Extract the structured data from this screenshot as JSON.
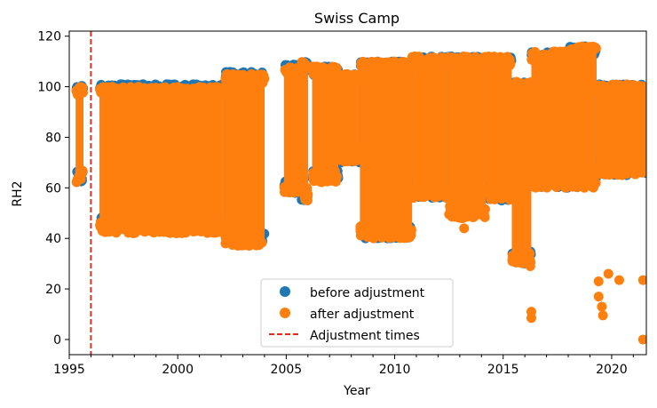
{
  "chart_data": {
    "type": "scatter",
    "title": "Swiss Camp",
    "xlabel": "Year",
    "ylabel": "RH2",
    "xlim": [
      1995,
      2021.6
    ],
    "ylim": [
      -6,
      122
    ],
    "xticks": [
      1995,
      2000,
      2005,
      2010,
      2015,
      2020
    ],
    "yticks": [
      0,
      20,
      40,
      60,
      80,
      100,
      120
    ],
    "legend_position": "lower center",
    "series": [
      {
        "name": "before adjustment",
        "color": "#1f77b4",
        "marker": "circle",
        "bands": [
          [
            1995.3,
            1995.65,
            62,
            101
          ],
          [
            1996.4,
            2002.2,
            45,
            101
          ],
          [
            2002.2,
            2004.0,
            38,
            106
          ],
          [
            2004.9,
            2005.7,
            58,
            109
          ],
          [
            2005.7,
            2006.0,
            55,
            110
          ],
          [
            2006.2,
            2007.4,
            63,
            108
          ],
          [
            2007.4,
            2008.4,
            70,
            105
          ],
          [
            2008.4,
            2010.8,
            40,
            110
          ],
          [
            2010.8,
            2012.5,
            56,
            112
          ],
          [
            2012.5,
            2014.2,
            56,
            112
          ],
          [
            2014.2,
            2015.4,
            55,
            112
          ],
          [
            2015.4,
            2016.3,
            30,
            102
          ],
          [
            2016.3,
            2018.0,
            60,
            114
          ],
          [
            2018.0,
            2019.3,
            62,
            116
          ],
          [
            2019.3,
            2021.6,
            65,
            101
          ]
        ],
        "points": []
      },
      {
        "name": "after adjustment",
        "color": "#ff7f0e",
        "marker": "circle",
        "bands": [
          [
            1995.3,
            1995.65,
            62,
            100
          ],
          [
            1996.4,
            2002.2,
            42,
            100
          ],
          [
            2002.2,
            2004.0,
            37,
            105
          ],
          [
            2004.9,
            2005.7,
            58,
            108
          ],
          [
            2005.7,
            2006.0,
            55,
            110
          ],
          [
            2006.2,
            2007.4,
            62,
            108
          ],
          [
            2007.4,
            2008.4,
            70,
            105
          ],
          [
            2008.4,
            2010.8,
            40,
            110
          ],
          [
            2010.8,
            2012.5,
            56,
            112
          ],
          [
            2012.5,
            2014.2,
            48,
            112
          ],
          [
            2014.2,
            2015.4,
            55,
            112
          ],
          [
            2015.4,
            2016.3,
            30,
            102
          ],
          [
            2016.3,
            2018.0,
            60,
            114
          ],
          [
            2018.0,
            2019.3,
            60,
            116
          ],
          [
            2019.3,
            2021.6,
            65,
            101
          ]
        ],
        "points": [
          [
            2016.1,
            32.5
          ],
          [
            2016.25,
            29
          ],
          [
            2016.3,
            11
          ],
          [
            2016.3,
            8.5
          ],
          [
            2019.4,
            23
          ],
          [
            2019.4,
            17
          ],
          [
            2019.55,
            13
          ],
          [
            2019.6,
            9.5
          ],
          [
            2019.85,
            26
          ],
          [
            2020.35,
            23.5
          ],
          [
            2021.45,
            23.5
          ],
          [
            2021.45,
            0
          ],
          [
            2003.5,
            41
          ],
          [
            2002.2,
            38
          ],
          [
            2010.4,
            48
          ],
          [
            2011.6,
            59
          ],
          [
            2012.4,
            56
          ],
          [
            2013.1,
            48
          ],
          [
            2013.2,
            44
          ],
          [
            2014.25,
            58
          ],
          [
            2015.05,
            65
          ],
          [
            2016.75,
            73
          ],
          [
            2019.2,
            62
          ],
          [
            2007.5,
            71
          ]
        ]
      },
      {
        "name": "Adjustment times",
        "color": "#e32b1e",
        "style": "dashed-vertical-line",
        "x": [
          1996
        ]
      }
    ]
  }
}
